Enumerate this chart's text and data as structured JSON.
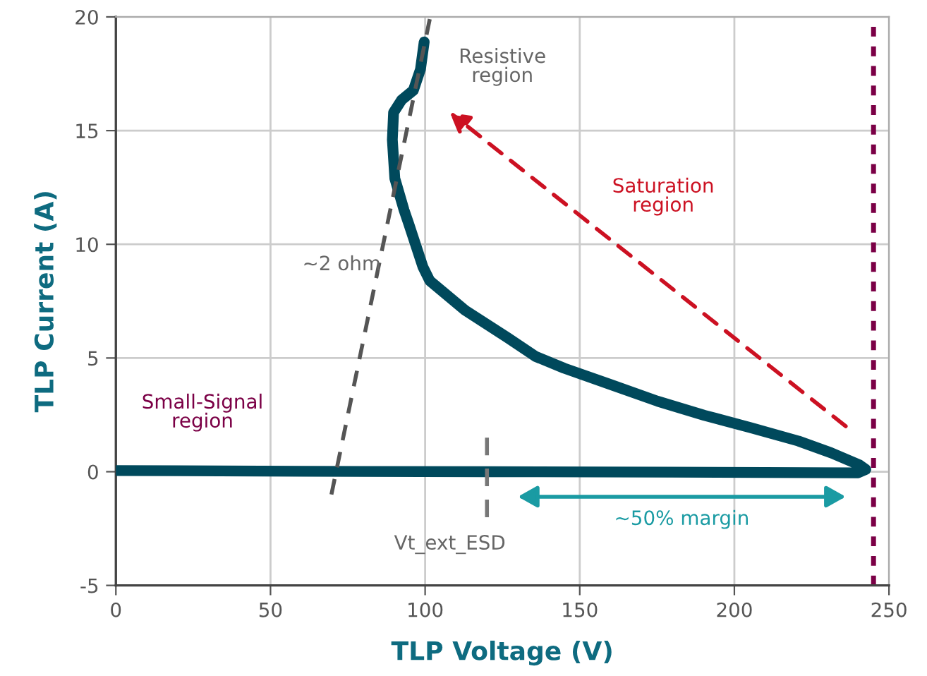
{
  "chart_data": {
    "type": "line",
    "xlabel": "TLP Voltage (V)",
    "ylabel": "TLP Current (A)",
    "xlim": [
      0,
      250
    ],
    "ylim": [
      -5,
      20
    ],
    "xticks": [
      0,
      50,
      100,
      150,
      200,
      250
    ],
    "yticks": [
      -5,
      0,
      5,
      10,
      15,
      20
    ],
    "grid": true,
    "legend": false,
    "marker": "none",
    "series": [
      {
        "color": "#00495c",
        "line_style": "solid",
        "x": [
          0,
          60,
          120,
          180,
          240,
          242.5,
          240.4,
          231.3,
          220.7,
          205.5,
          190.3,
          175.2,
          160,
          145,
          135.7,
          126.6,
          112.9,
          101.5,
          99.3,
          94.7,
          93.2,
          90.2,
          89.4,
          89.8,
          92.4,
          96.2,
          98.5,
          99.7
        ],
        "values": [
          0.05,
          0.02,
          0,
          -0.02,
          -0.05,
          0.1,
          0.3,
          0.83,
          1.35,
          1.93,
          2.48,
          3.1,
          3.83,
          4.55,
          5.07,
          5.9,
          7.1,
          8.4,
          9.0,
          10.9,
          11.5,
          12.9,
          14.6,
          15.8,
          16.35,
          16.77,
          17.7,
          18.9
        ]
      },
      {
        "color": "#555555",
        "line_style": "dashed",
        "x": [
          69.7,
          101.5
        ],
        "values": [
          -1.0,
          19.9
        ]
      },
      {
        "color": "#777777",
        "line_style": "dashed",
        "x": [
          120,
          120
        ],
        "values": [
          -2.0,
          1.5
        ]
      }
    ],
    "ref_lines": [
      {
        "axis": "x",
        "value": 245,
        "color": "#7b0046",
        "line_style": "dotted"
      }
    ],
    "annotations": [
      "Resistive\nregion",
      "Saturation\nregion",
      "~2 ohm",
      "Small-Signal\nregion",
      "Vt_ext_ESD",
      "~50% margin"
    ]
  }
}
